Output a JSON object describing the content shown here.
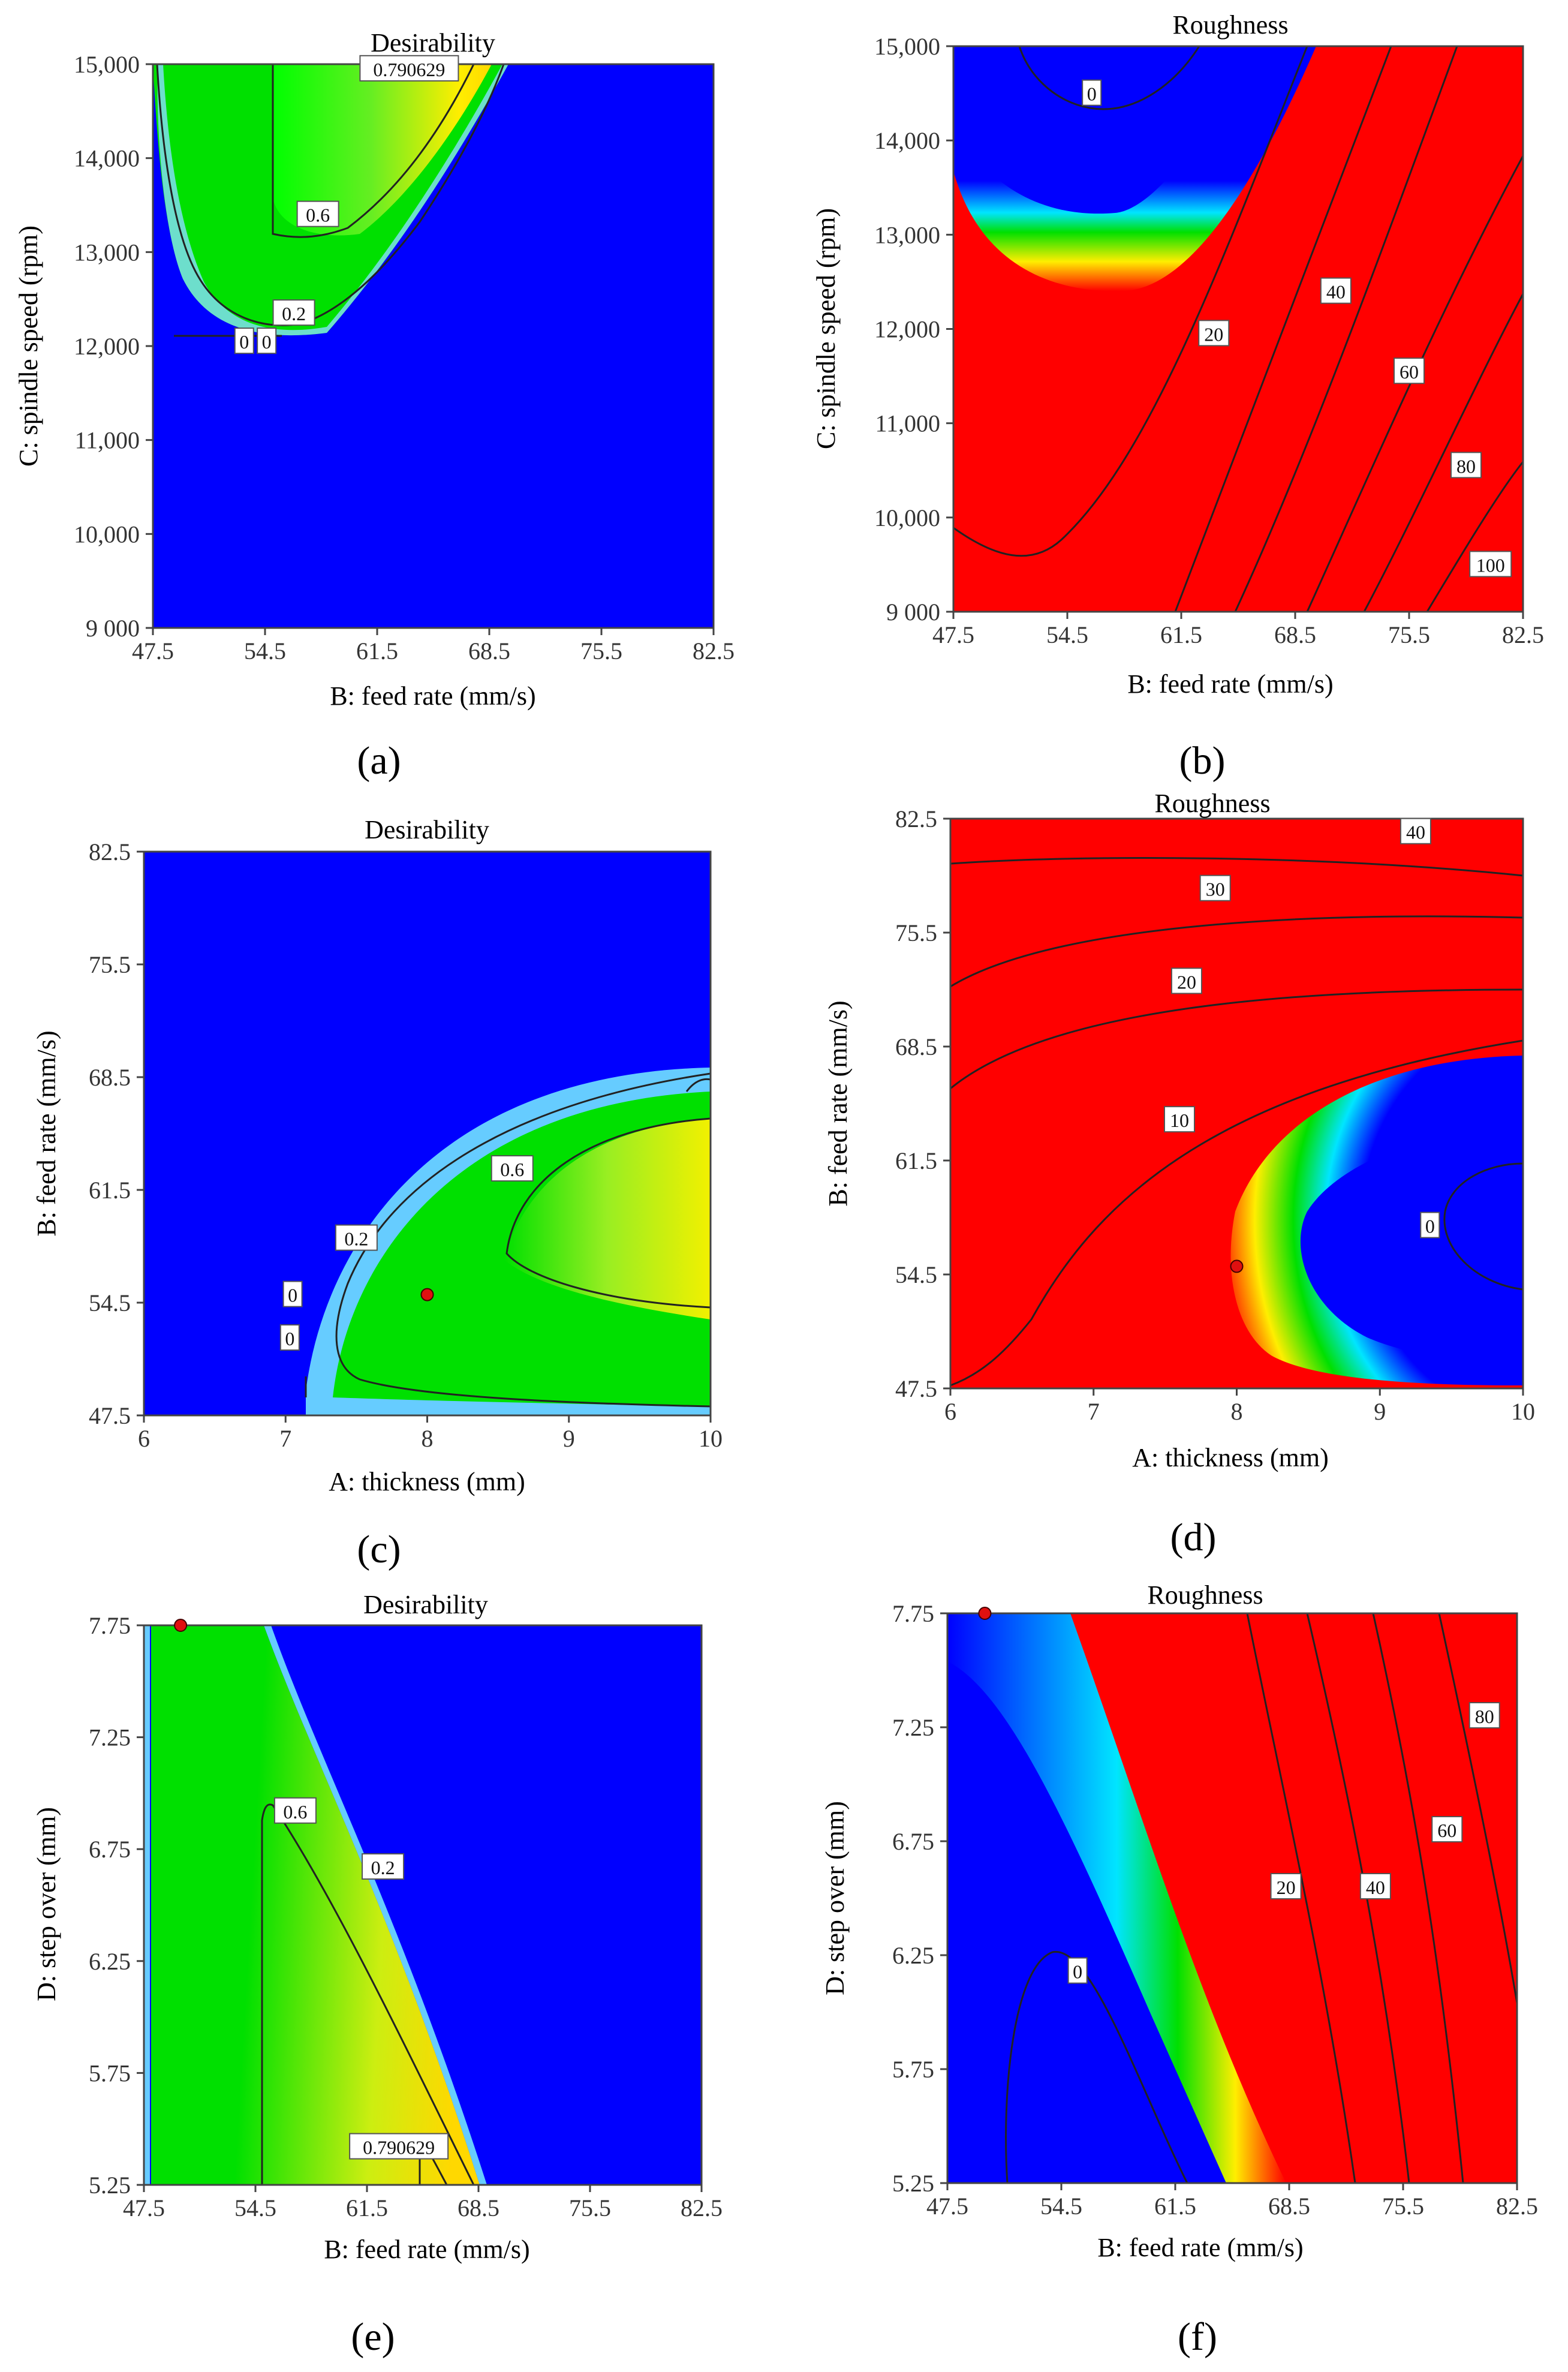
{
  "chart_data": [
    {
      "panel": "(a)",
      "type": "contour",
      "title": "Desirability",
      "xlabel": "B: feed rate (mm/s)",
      "ylabel": "C: spindle speed (rpm)",
      "xlim": [
        47.5,
        82.5
      ],
      "ylim": [
        9000,
        15000
      ],
      "xticks": [
        "47.5",
        "54.5",
        "61.5",
        "68.5",
        "75.5",
        "82.5"
      ],
      "yticks": [
        "9 000",
        "10,000",
        "11,000",
        "12,000",
        "13,000",
        "14,000",
        "15,000"
      ],
      "contour_labels": [
        {
          "text": "0.790629",
          "x": 63.5,
          "y": 14950
        },
        {
          "text": "0.6",
          "x": 57.8,
          "y": 13400
        },
        {
          "text": "0.2",
          "x": 56.3,
          "y": 12350
        },
        {
          "text": "0",
          "x": 53.2,
          "y": 12050
        },
        {
          "text": "0",
          "x": 54.6,
          "y": 12050
        }
      ]
    },
    {
      "panel": "(b)",
      "type": "contour",
      "title": "Roughness",
      "xlabel": "B: feed rate (mm/s)",
      "ylabel": "C: spindle speed (rpm)",
      "xlim": [
        47.5,
        82.5
      ],
      "ylim": [
        9000,
        15000
      ],
      "xticks": [
        "47.5",
        "54.5",
        "61.5",
        "68.5",
        "75.5",
        "82.5"
      ],
      "yticks": [
        "9 000",
        "10,000",
        "11,000",
        "12,000",
        "13,000",
        "14,000",
        "15,000"
      ],
      "contour_labels": [
        {
          "text": "0",
          "x": 56.0,
          "y": 14500
        },
        {
          "text": "20",
          "x": 63.5,
          "y": 11950
        },
        {
          "text": "40",
          "x": 71.0,
          "y": 12400
        },
        {
          "text": "60",
          "x": 75.5,
          "y": 11550
        },
        {
          "text": "80",
          "x": 79.0,
          "y": 10550
        },
        {
          "text": "100",
          "x": 80.5,
          "y": 9500
        }
      ]
    },
    {
      "panel": "(c)",
      "type": "contour",
      "title": "Desirability",
      "xlabel": "A: thickness (mm)",
      "ylabel": "B: feed rate (mm/s)",
      "xlim": [
        6,
        10
      ],
      "ylim": [
        47.5,
        82.5
      ],
      "xticks": [
        "6",
        "7",
        "8",
        "9",
        "10"
      ],
      "yticks": [
        "47.5",
        "54.5",
        "61.5",
        "68.5",
        "75.5",
        "82.5"
      ],
      "contour_labels": [
        {
          "text": "0.6",
          "x": 8.6,
          "y": 62.8
        },
        {
          "text": "0.2",
          "x": 7.5,
          "y": 58.5
        },
        {
          "text": "0",
          "x": 7.05,
          "y": 55.0
        },
        {
          "text": "0",
          "x": 7.03,
          "y": 52.3
        }
      ],
      "points": [
        {
          "x": 8.0,
          "y": 55.0
        }
      ]
    },
    {
      "panel": "(d)",
      "type": "contour",
      "title": "Roughness",
      "xlabel": "A: thickness (mm)",
      "ylabel": "B: feed rate (mm/s)",
      "xlim": [
        6,
        10
      ],
      "ylim": [
        47.5,
        82.5
      ],
      "xticks": [
        "6",
        "7",
        "8",
        "9",
        "10"
      ],
      "yticks": [
        "47.5",
        "54.5",
        "61.5",
        "68.5",
        "75.5",
        "82.5"
      ],
      "contour_labels": [
        {
          "text": "40",
          "x": 9.25,
          "y": 81.7
        },
        {
          "text": "30",
          "x": 7.85,
          "y": 78.2
        },
        {
          "text": "20",
          "x": 7.65,
          "y": 72.5
        },
        {
          "text": "10",
          "x": 7.6,
          "y": 64.0
        },
        {
          "text": "0",
          "x": 9.35,
          "y": 57.5
        }
      ],
      "points": [
        {
          "x": 8.0,
          "y": 55.0
        }
      ]
    },
    {
      "panel": "(e)",
      "type": "contour",
      "title": "Desirability",
      "xlabel": "B: feed rate (mm/s)",
      "ylabel": "D: step over (mm)",
      "xlim": [
        47.5,
        82.5
      ],
      "ylim": [
        5.25,
        7.75
      ],
      "xticks": [
        "47.5",
        "54.5",
        "61.5",
        "68.5",
        "75.5",
        "82.5"
      ],
      "yticks": [
        "5.25",
        "5.75",
        "6.25",
        "6.75",
        "7.25",
        "7.75"
      ],
      "contour_labels": [
        {
          "text": "0.6",
          "x": 57.0,
          "y": 6.92
        },
        {
          "text": "0.2",
          "x": 62.5,
          "y": 6.67
        },
        {
          "text": "0.790629",
          "x": 63.5,
          "y": 5.42
        }
      ],
      "points": [
        {
          "x": 49.8,
          "y": 7.75
        }
      ]
    },
    {
      "panel": "(f)",
      "type": "contour",
      "title": "Roughness",
      "xlabel": "B: feed rate (mm/s)",
      "ylabel": "D: step over (mm)",
      "xlim": [
        47.5,
        82.5
      ],
      "ylim": [
        5.25,
        7.75
      ],
      "xticks": [
        "47.5",
        "54.5",
        "61.5",
        "68.5",
        "75.5",
        "82.5"
      ],
      "yticks": [
        "5.25",
        "5.75",
        "6.25",
        "6.75",
        "7.25",
        "7.75"
      ],
      "contour_labels": [
        {
          "text": "0",
          "x": 55.5,
          "y": 6.18
        },
        {
          "text": "20",
          "x": 68.3,
          "y": 6.55
        },
        {
          "text": "40",
          "x": 73.8,
          "y": 6.55
        },
        {
          "text": "60",
          "x": 78.2,
          "y": 6.8
        },
        {
          "text": "80",
          "x": 80.5,
          "y": 7.3
        }
      ],
      "points": [
        {
          "x": 49.8,
          "y": 7.75
        }
      ]
    }
  ]
}
